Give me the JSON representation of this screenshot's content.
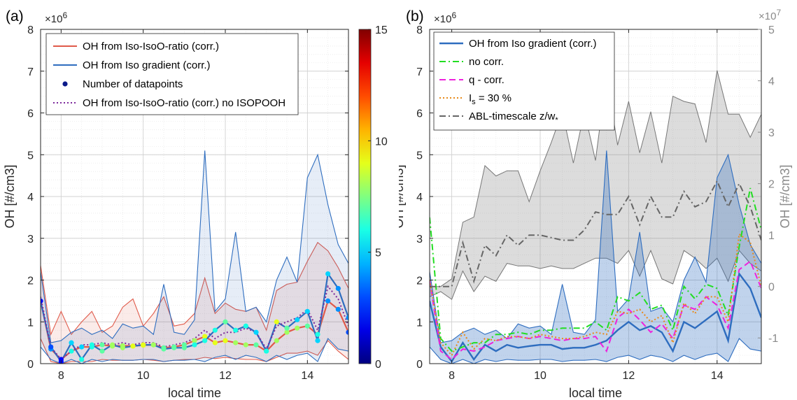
{
  "panel_a_label": "(a)",
  "panel_b_label": "(b)",
  "chart_data": [
    {
      "type": "line",
      "panel": "(a)",
      "xlabel": "local time",
      "ylabel": "OH [#/cm3]",
      "y_exponent": "×10",
      "y_exponent_power": "6",
      "xlim": [
        7.5,
        15
      ],
      "ylim": [
        0,
        8
      ],
      "xticks": [
        8,
        10,
        12,
        14
      ],
      "yticks": [
        0,
        1,
        2,
        3,
        4,
        5,
        6,
        7,
        8
      ],
      "grid": true,
      "legend_position": "top-left",
      "colorbar": {
        "title": "",
        "label": "Number of datapoints",
        "range": [
          0,
          15
        ],
        "ticks": [
          0,
          5,
          10,
          15
        ],
        "colormap": "jet"
      },
      "x": [
        7.5,
        7.75,
        8.0,
        8.25,
        8.5,
        8.75,
        9.0,
        9.25,
        9.5,
        9.75,
        10.0,
        10.25,
        10.5,
        10.75,
        11.0,
        11.25,
        11.5,
        11.75,
        12.0,
        12.25,
        12.5,
        12.75,
        13.0,
        13.25,
        13.5,
        13.75,
        14.0,
        14.25,
        14.5,
        14.75,
        15.0
      ],
      "series": [
        {
          "name": "OH from Iso-IsoO-ratio (corr.)",
          "color": "#e05a4a",
          "style": "solid",
          "values": [
            1.5,
            0.35,
            0.1,
            0.3,
            0.4,
            0.4,
            0.45,
            0.42,
            0.43,
            0.42,
            0.44,
            0.45,
            0.38,
            0.4,
            0.45,
            0.55,
            0.65,
            0.5,
            0.55,
            0.5,
            0.45,
            0.45,
            0.3,
            0.55,
            0.75,
            0.85,
            0.9,
            0.7,
            1.5,
            1.3,
            0.75
          ],
          "upper": [
            2.35,
            0.7,
            1.25,
            0.7,
            1.0,
            1.25,
            0.75,
            0.9,
            1.35,
            1.55,
            0.9,
            1.2,
            1.6,
            0.9,
            0.95,
            1.2,
            2.05,
            1.2,
            1.45,
            1.3,
            1.25,
            1.35,
            0.8,
            1.75,
            1.9,
            1.95,
            2.45,
            2.9,
            2.7,
            2.3,
            1.8
          ],
          "lower": [
            0.6,
            0.05,
            0.0,
            0.05,
            0.05,
            0.05,
            0.1,
            0.08,
            0.08,
            0.08,
            0.1,
            0.08,
            0.05,
            0.08,
            0.1,
            0.1,
            0.15,
            0.12,
            0.15,
            0.12,
            0.1,
            0.1,
            0.05,
            0.15,
            0.25,
            0.25,
            0.3,
            0.2,
            0.55,
            0.3,
            0.1
          ]
        },
        {
          "name": "OH from Iso gradient (corr.)",
          "color": "#2e6dbf",
          "style": "solid",
          "values": [
            1.5,
            0.4,
            0.05,
            0.5,
            0.1,
            0.45,
            0.3,
            0.45,
            0.38,
            0.42,
            0.45,
            0.45,
            0.35,
            0.38,
            0.38,
            0.45,
            0.55,
            0.8,
            1.0,
            0.8,
            0.9,
            0.75,
            0.3,
            1.0,
            0.85,
            1.05,
            1.25,
            0.55,
            2.15,
            1.8,
            1.1
          ],
          "upper": [
            2.2,
            0.5,
            0.55,
            0.75,
            0.85,
            0.7,
            0.8,
            0.6,
            0.95,
            0.85,
            0.9,
            0.7,
            1.9,
            0.75,
            0.7,
            1.05,
            5.1,
            1.25,
            1.55,
            3.15,
            1.25,
            1.35,
            1.0,
            2.0,
            2.55,
            1.95,
            4.45,
            5.0,
            3.8,
            2.85,
            2.4
          ],
          "lower": [
            0.4,
            0.1,
            0.0,
            0.1,
            0.0,
            0.1,
            0.05,
            0.1,
            0.08,
            0.08,
            0.1,
            0.1,
            0.05,
            0.08,
            0.08,
            0.1,
            0.05,
            0.15,
            0.2,
            0.1,
            0.2,
            0.15,
            0.05,
            0.2,
            0.1,
            0.2,
            0.25,
            0.05,
            0.6,
            0.35,
            0.3
          ]
        },
        {
          "name": "OH from Iso-IsoO-ratio (corr.) no ISOPOOH",
          "color": "#7d2a9c",
          "style": "dotted",
          "values": [
            1.6,
            0.4,
            0.1,
            0.3,
            0.45,
            0.45,
            0.5,
            0.45,
            0.5,
            0.45,
            0.5,
            0.5,
            0.4,
            0.45,
            0.5,
            0.6,
            0.8,
            0.6,
            0.75,
            0.75,
            0.85,
            0.75,
            0.35,
            0.9,
            1.0,
            1.1,
            1.3,
            0.8,
            1.85,
            1.55,
            0.9
          ]
        }
      ],
      "datapoints": {
        "name": "Number of datapoints",
        "marker_color": "#0b1a8a",
        "counts_series1": [
          3,
          4,
          2,
          6,
          5,
          6,
          7,
          8,
          8,
          9,
          9,
          8,
          7,
          7,
          7,
          8,
          9,
          9,
          9,
          8,
          8,
          7,
          6,
          8,
          8,
          8,
          7,
          6,
          4,
          4,
          3
        ],
        "counts_series2": [
          2,
          3,
          2,
          5,
          6,
          6,
          7,
          8,
          8,
          9,
          9,
          8,
          7,
          7,
          7,
          6,
          6,
          6,
          7,
          6,
          6,
          5,
          6,
          9,
          7,
          5,
          5,
          5,
          5,
          4,
          4
        ]
      }
    },
    {
      "type": "line",
      "panel": "(b)",
      "xlabel": "local time",
      "ylabel": "OH [#/cm3]",
      "ylabel_right": "OH [#/cm3]",
      "y_exponent": "×10",
      "y_exponent_power": "6",
      "y2_exponent": "×10",
      "y2_exponent_power": "7",
      "xlim": [
        7.5,
        15
      ],
      "ylim": [
        0,
        8
      ],
      "y2lim": [
        -1.5,
        5
      ],
      "xticks": [
        8,
        10,
        12,
        14
      ],
      "yticks": [
        0,
        1,
        2,
        3,
        4,
        5,
        6,
        7,
        8
      ],
      "y2ticks": [
        -1,
        0,
        1,
        2,
        3,
        4,
        5
      ],
      "grid": true,
      "legend_position": "top-left",
      "x": [
        7.5,
        7.75,
        8.0,
        8.25,
        8.5,
        8.75,
        9.0,
        9.25,
        9.5,
        9.75,
        10.0,
        10.25,
        10.5,
        10.75,
        11.0,
        11.25,
        11.5,
        11.75,
        12.0,
        12.25,
        12.5,
        12.75,
        13.0,
        13.25,
        13.5,
        13.75,
        14.0,
        14.25,
        14.5,
        14.75,
        15.0
      ],
      "series": [
        {
          "name": "OH from Iso gradient (corr.)",
          "color": "#2e6dbf",
          "style": "solid",
          "axis": "left",
          "values": [
            1.5,
            0.4,
            0.05,
            0.5,
            0.1,
            0.45,
            0.3,
            0.45,
            0.38,
            0.42,
            0.45,
            0.45,
            0.35,
            0.38,
            0.38,
            0.45,
            0.55,
            0.8,
            1.0,
            0.8,
            0.9,
            0.75,
            0.3,
            1.0,
            0.85,
            1.05,
            1.25,
            0.55,
            2.15,
            1.8,
            1.1
          ],
          "upper": [
            2.2,
            0.5,
            0.55,
            0.75,
            0.85,
            0.7,
            0.8,
            0.6,
            0.95,
            0.85,
            0.9,
            0.7,
            1.9,
            0.75,
            0.7,
            1.05,
            5.1,
            1.25,
            1.55,
            3.15,
            1.25,
            1.35,
            1.0,
            2.0,
            2.55,
            1.95,
            4.45,
            5.0,
            3.8,
            2.85,
            2.4
          ],
          "lower": [
            0.4,
            0.1,
            0.0,
            0.1,
            0.0,
            0.1,
            0.05,
            0.1,
            0.08,
            0.08,
            0.1,
            0.1,
            0.05,
            0.08,
            0.08,
            0.1,
            0.05,
            0.15,
            0.2,
            0.1,
            0.2,
            0.15,
            0.05,
            0.2,
            0.1,
            0.2,
            0.25,
            0.05,
            0.6,
            0.35,
            0.3
          ]
        },
        {
          "name": "no corr.",
          "color": "#22dd22",
          "style": "dashdot",
          "axis": "left",
          "values": [
            3.5,
            0.6,
            0.3,
            0.4,
            0.5,
            0.5,
            0.7,
            0.7,
            0.75,
            0.7,
            0.8,
            0.8,
            0.85,
            0.85,
            0.85,
            1.0,
            0.8,
            1.6,
            1.5,
            1.7,
            1.3,
            1.4,
            0.8,
            1.85,
            1.55,
            1.9,
            1.8,
            1.15,
            2.8,
            4.2,
            3.2
          ]
        },
        {
          "name": "q - corr.",
          "color": "#ee22dd",
          "style": "dashed",
          "axis": "left",
          "values": [
            2.0,
            0.3,
            0.1,
            0.35,
            0.3,
            0.4,
            0.55,
            0.6,
            0.65,
            0.6,
            0.65,
            0.6,
            0.55,
            0.6,
            0.6,
            0.65,
            0.3,
            1.1,
            1.3,
            1.05,
            0.75,
            0.95,
            0.6,
            1.4,
            1.3,
            1.6,
            1.4,
            0.85,
            2.25,
            2.45,
            1.8
          ]
        },
        {
          "name": "I_s = 30 %",
          "label_main": "I",
          "label_sub": "s",
          "label_rest": " = 30 %",
          "color": "#e88a1a",
          "style": "dotted",
          "axis": "left",
          "values": [
            2.0,
            0.5,
            0.2,
            0.75,
            0.35,
            0.6,
            0.55,
            0.65,
            0.65,
            0.6,
            0.7,
            0.65,
            0.6,
            0.6,
            0.65,
            0.75,
            0.7,
            1.25,
            1.2,
            1.3,
            1.0,
            1.15,
            0.5,
            1.45,
            1.2,
            1.6,
            1.6,
            1.0,
            3.1,
            2.9,
            1.85
          ]
        },
        {
          "name": "ABL-timescale z/w*",
          "label_main": "ABL-timescale z/w",
          "label_sub": "*",
          "color": "#666666",
          "style": "dashdot",
          "axis": "right",
          "values": [
            0.0,
            0.0,
            0.0,
            0.85,
            0.1,
            0.8,
            0.6,
            1.0,
            0.8,
            1.0,
            1.0,
            0.95,
            0.9,
            0.9,
            1.1,
            1.45,
            1.4,
            1.4,
            1.75,
            1.2,
            1.75,
            1.35,
            1.35,
            1.85,
            1.55,
            1.65,
            2.05,
            1.55,
            2.0,
            1.55,
            0.9
          ],
          "upper": [
            0.0,
            0.0,
            0.15,
            1.25,
            1.35,
            2.35,
            2.15,
            2.25,
            2.25,
            1.65,
            2.25,
            2.8,
            3.4,
            2.4,
            3.4,
            2.45,
            4.1,
            2.75,
            3.6,
            2.6,
            3.4,
            2.4,
            3.7,
            3.6,
            3.55,
            2.8,
            4.2,
            3.35,
            3.35,
            2.9,
            3.35
          ],
          "lower": [
            -0.2,
            -0.1,
            -0.25,
            0.3,
            -0.1,
            0.2,
            0.1,
            0.45,
            0.4,
            0.4,
            0.35,
            0.4,
            0.35,
            0.35,
            0.45,
            0.55,
            0.55,
            0.45,
            0.7,
            0.2,
            0.7,
            0.15,
            0.05,
            0.7,
            0.55,
            0.35,
            0.55,
            0.1,
            0.7,
            0.45,
            0.3
          ]
        }
      ]
    }
  ]
}
